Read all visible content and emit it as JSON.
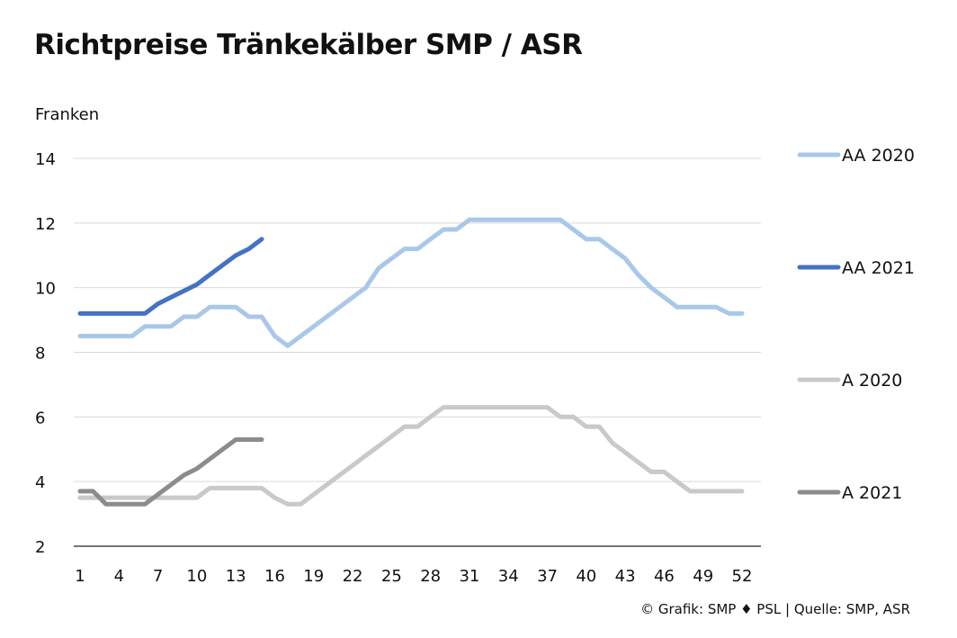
{
  "chart_data": {
    "type": "line",
    "title": "Richtpreise Tränkekälber SMP / ASR",
    "ylabel": "Franken",
    "xlabel": "",
    "ylim": [
      2,
      14
    ],
    "yticks": [
      2,
      4,
      6,
      8,
      10,
      12,
      14
    ],
    "xlim": [
      1,
      52
    ],
    "xticks": [
      1,
      4,
      7,
      10,
      13,
      16,
      19,
      22,
      25,
      28,
      31,
      34,
      37,
      40,
      43,
      46,
      49,
      52
    ],
    "grid": true,
    "legend": "right",
    "series": [
      {
        "name": "AA 2020",
        "color": "#a9c8e9",
        "x": [
          1,
          2,
          3,
          4,
          5,
          6,
          7,
          8,
          9,
          10,
          11,
          12,
          13,
          14,
          15,
          16,
          17,
          18,
          19,
          20,
          21,
          22,
          23,
          24,
          25,
          26,
          27,
          28,
          29,
          30,
          31,
          32,
          33,
          34,
          35,
          36,
          37,
          38,
          39,
          40,
          41,
          42,
          43,
          44,
          45,
          46,
          47,
          48,
          49,
          50,
          51,
          52
        ],
        "y": [
          8.5,
          8.5,
          8.5,
          8.5,
          8.5,
          8.8,
          8.8,
          8.8,
          9.1,
          9.1,
          9.4,
          9.4,
          9.4,
          9.1,
          9.1,
          8.5,
          8.2,
          8.5,
          8.8,
          9.1,
          9.4,
          9.7,
          10.0,
          10.6,
          10.9,
          11.2,
          11.2,
          11.5,
          11.8,
          11.8,
          12.1,
          12.1,
          12.1,
          12.1,
          12.1,
          12.1,
          12.1,
          12.1,
          11.8,
          11.5,
          11.5,
          11.2,
          10.9,
          10.4,
          10.0,
          9.7,
          9.4,
          9.4,
          9.4,
          9.4,
          9.2,
          9.2
        ]
      },
      {
        "name": "AA 2021",
        "color": "#4472c4",
        "x": [
          1,
          2,
          3,
          4,
          5,
          6,
          7,
          8,
          9,
          10,
          11,
          12,
          13,
          14,
          15
        ],
        "y": [
          9.2,
          9.2,
          9.2,
          9.2,
          9.2,
          9.2,
          9.5,
          9.7,
          9.9,
          10.1,
          10.4,
          10.7,
          11.0,
          11.2,
          11.5
        ]
      },
      {
        "name": "A 2020",
        "color": "#c8c9cb",
        "x": [
          1,
          2,
          3,
          4,
          5,
          6,
          7,
          8,
          9,
          10,
          11,
          12,
          13,
          14,
          15,
          16,
          17,
          18,
          19,
          20,
          21,
          22,
          23,
          24,
          25,
          26,
          27,
          28,
          29,
          30,
          31,
          32,
          33,
          34,
          35,
          36,
          37,
          38,
          39,
          40,
          41,
          42,
          43,
          44,
          45,
          46,
          47,
          48,
          49,
          50,
          51,
          52
        ],
        "y": [
          3.5,
          3.5,
          3.5,
          3.5,
          3.5,
          3.5,
          3.5,
          3.5,
          3.5,
          3.5,
          3.8,
          3.8,
          3.8,
          3.8,
          3.8,
          3.5,
          3.3,
          3.3,
          3.6,
          3.9,
          4.2,
          4.5,
          4.8,
          5.1,
          5.4,
          5.7,
          5.7,
          6.0,
          6.3,
          6.3,
          6.3,
          6.3,
          6.3,
          6.3,
          6.3,
          6.3,
          6.3,
          6.0,
          6.0,
          5.7,
          5.7,
          5.2,
          4.9,
          4.6,
          4.3,
          4.3,
          4.0,
          3.7,
          3.7,
          3.7,
          3.7,
          3.7
        ]
      },
      {
        "name": "A 2021",
        "color": "#8a8c8e",
        "x": [
          1,
          2,
          3,
          4,
          5,
          6,
          7,
          8,
          9,
          10,
          11,
          12,
          13,
          14,
          15
        ],
        "y": [
          3.7,
          3.7,
          3.3,
          3.3,
          3.3,
          3.3,
          3.6,
          3.9,
          4.2,
          4.4,
          4.7,
          5.0,
          5.3,
          5.3,
          5.3
        ]
      }
    ]
  },
  "credit": "© Grafik: SMP ♦ PSL | Quelle: SMP, ASR"
}
